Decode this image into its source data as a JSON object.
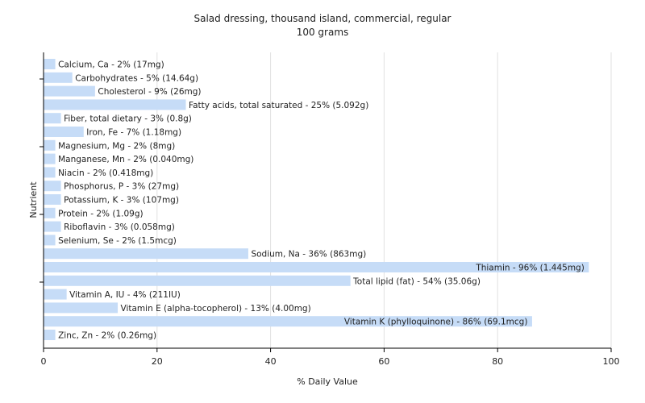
{
  "chart_data": {
    "type": "bar",
    "orientation": "horizontal",
    "title": "Salad dressing, thousand island, commercial, regular",
    "subtitle": "100 grams",
    "xlabel": "% Daily Value",
    "ylabel": "Nutrient",
    "xlim": [
      0,
      100
    ],
    "xticks": [
      "0",
      "20",
      "40",
      "60",
      "80",
      "100"
    ],
    "grid": true,
    "bar_color": "#c6dcf7",
    "categories": [
      "Calcium, Ca",
      "Carbohydrates",
      "Cholesterol",
      "Fatty acids, total saturated",
      "Fiber, total dietary",
      "Iron, Fe",
      "Magnesium, Mg",
      "Manganese, Mn",
      "Niacin",
      "Phosphorus, P",
      "Potassium, K",
      "Protein",
      "Riboflavin",
      "Selenium, Se",
      "Sodium, Na",
      "Thiamin",
      "Total lipid (fat)",
      "Vitamin A, IU",
      "Vitamin E (alpha-tocopherol)",
      "Vitamin K (phylloquinone)",
      "Zinc, Zn"
    ],
    "values": [
      2,
      5,
      9,
      25,
      3,
      7,
      2,
      2,
      2,
      3,
      3,
      2,
      3,
      2,
      36,
      96,
      54,
      4,
      13,
      86,
      2
    ],
    "labels": [
      "Calcium, Ca - 2% (17mg)",
      "Carbohydrates - 5% (14.64g)",
      "Cholesterol - 9% (26mg)",
      "Fatty acids, total saturated - 25% (5.092g)",
      "Fiber, total dietary - 3% (0.8g)",
      "Iron, Fe - 7% (1.18mg)",
      "Magnesium, Mg - 2% (8mg)",
      "Manganese, Mn - 2% (0.040mg)",
      "Niacin - 2% (0.418mg)",
      "Phosphorus, P - 3% (27mg)",
      "Potassium, K - 3% (107mg)",
      "Protein - 2% (1.09g)",
      "Riboflavin - 3% (0.058mg)",
      "Selenium, Se - 2% (1.5mcg)",
      "Sodium, Na - 36% (863mg)",
      "Thiamin - 96% (1.445mg)",
      "Total lipid (fat) - 54% (35.06g)",
      "Vitamin A, IU - 4% (211IU)",
      "Vitamin E (alpha-tocopherol) - 13% (4.00mg)",
      "Vitamin K (phylloquinone) - 86% (69.1mcg)",
      "Zinc, Zn - 2% (0.26mg)"
    ]
  }
}
